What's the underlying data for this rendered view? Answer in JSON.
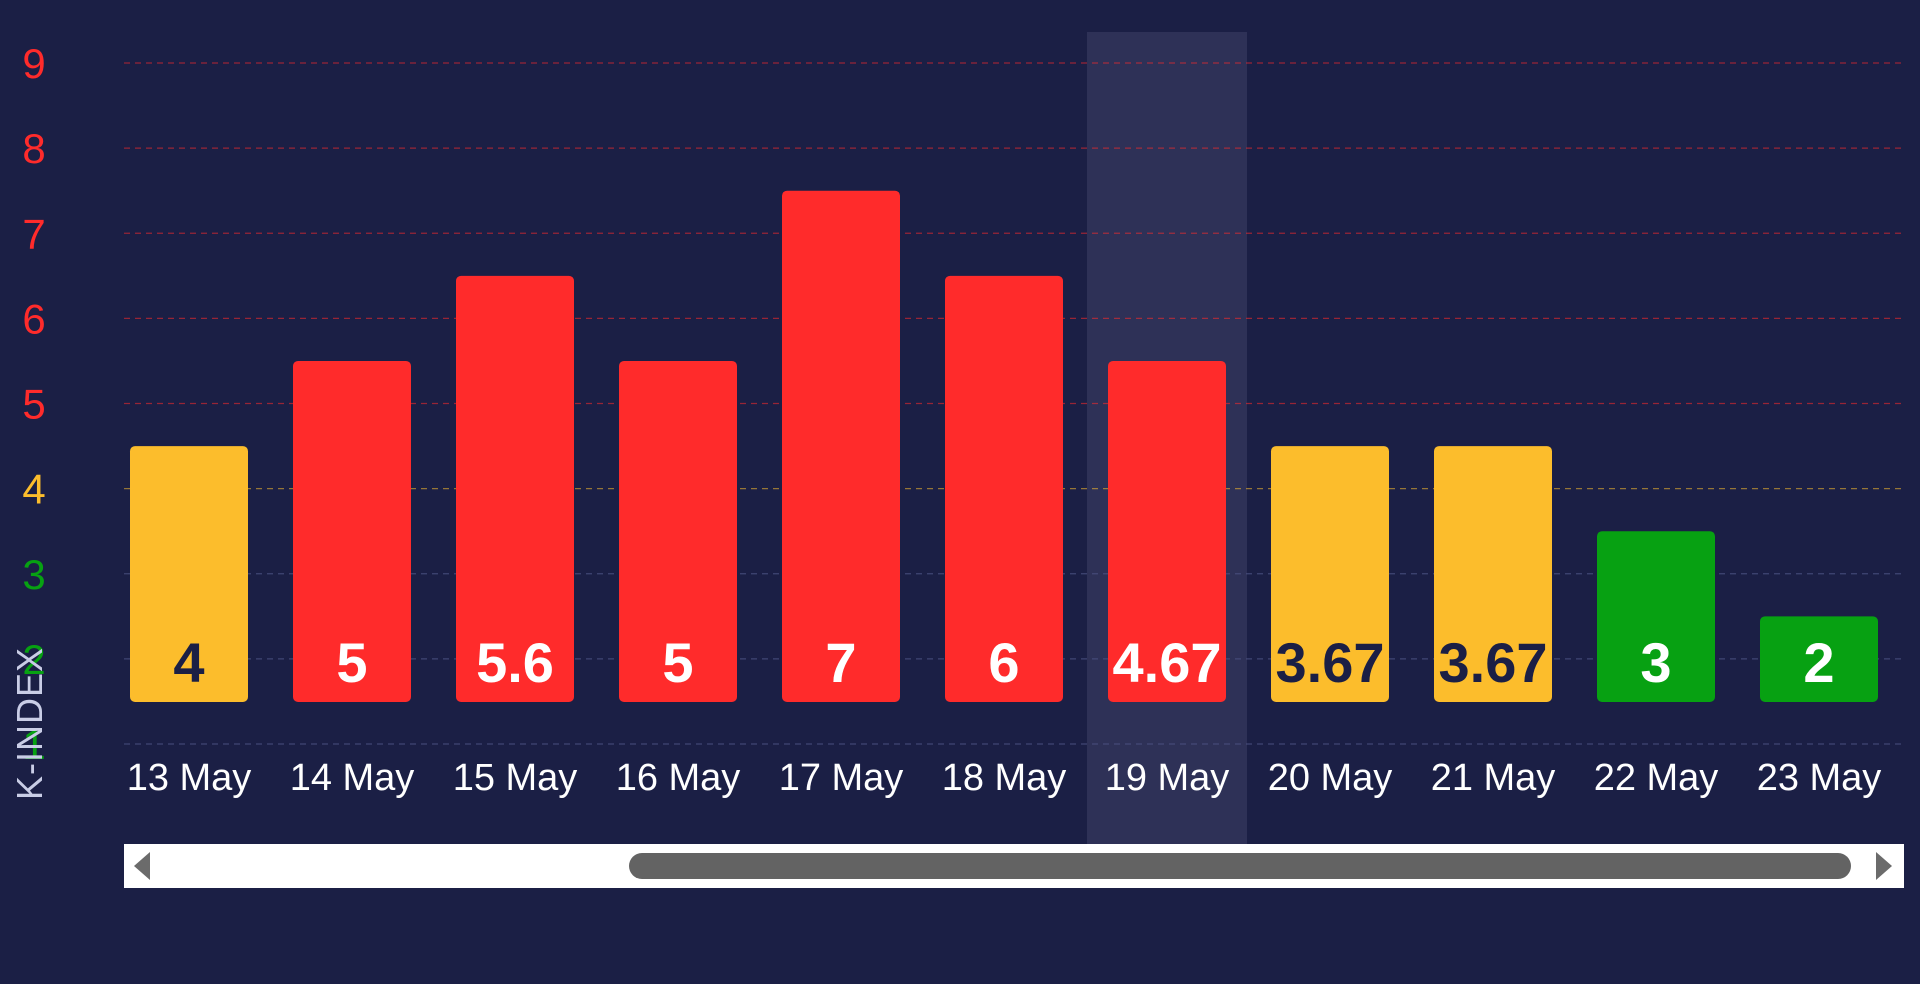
{
  "colors": {
    "background": "#1b1f45",
    "red": "#ff2b2b",
    "yellow": "#fcbd2c",
    "green": "#07a112",
    "dark_label": "#1b1f45",
    "light_label": "#ffffff",
    "highlight": "#2e3157"
  },
  "y_axis": {
    "title": "K-INDEX",
    "ticks": [
      "1",
      "2",
      "3",
      "4",
      "5",
      "6",
      "7",
      "8",
      "9"
    ]
  },
  "chart_data": {
    "type": "bar",
    "categories": [
      "13 May",
      "14 May",
      "15 May",
      "16 May",
      "17 May",
      "18 May",
      "19 May",
      "20 May",
      "21 May",
      "22 May",
      "23 May"
    ],
    "values": [
      4,
      5,
      5.6,
      5,
      7,
      6,
      4.67,
      3.67,
      3.67,
      3,
      2
    ],
    "labels": [
      "4",
      "5",
      "5.6",
      "5",
      "7",
      "6",
      "4.67",
      "3.67",
      "3.67",
      "3",
      "2"
    ],
    "bar_levels": [
      4,
      5,
      6,
      5,
      7,
      6,
      5,
      4,
      4,
      3,
      2
    ],
    "bar_colors": [
      "yellow",
      "red",
      "red",
      "red",
      "red",
      "red",
      "red",
      "yellow",
      "yellow",
      "green",
      "green"
    ],
    "highlighted_category": "19 May",
    "ylabel": "K-INDEX",
    "ylim": [
      1,
      9
    ],
    "grid": true
  },
  "scrollbar": {
    "left_arrow": "scroll-left-arrow-icon",
    "right_arrow": "scroll-right-arrow-icon"
  }
}
